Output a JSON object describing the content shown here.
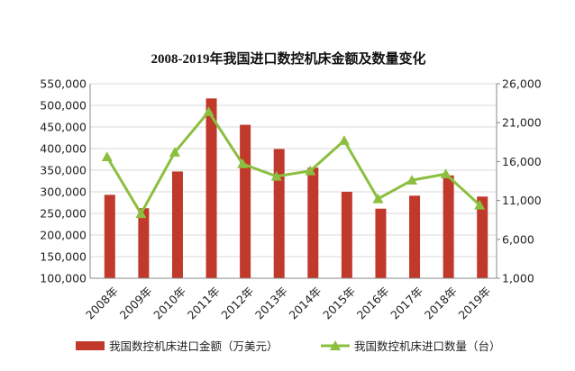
{
  "chart_data": {
    "type": "bar+line",
    "title": "2008-2019年我国进口数控机床金额及数量变化",
    "categories": [
      "2008年",
      "2009年",
      "2010年",
      "2011年",
      "2012年",
      "2013年",
      "2014年",
      "2015年",
      "2016年",
      "2017年",
      "2018年",
      "2019年"
    ],
    "y_left": {
      "ylim": [
        100000,
        550000
      ],
      "ticks": [
        "100,000",
        "150,000",
        "200,000",
        "250,000",
        "300,000",
        "350,000",
        "400,000",
        "450,000",
        "500,000",
        "550,000"
      ]
    },
    "y_right": {
      "ylim": [
        1000,
        26000
      ],
      "ticks": [
        "1,000",
        "6,000",
        "11,000",
        "16,000",
        "21,000",
        "26,000"
      ]
    },
    "series": [
      {
        "name": "我国数控机床进口金额（万美元）",
        "type": "bar",
        "axis": "left",
        "color": "#c0392b",
        "values": [
          293000,
          262000,
          347000,
          516000,
          455000,
          399000,
          356000,
          300000,
          261000,
          291000,
          338000,
          289000
        ]
      },
      {
        "name": "我国数控机床进口数量（台）",
        "type": "line",
        "axis": "right",
        "color": "#8cbf3f",
        "values": [
          16600,
          9300,
          17200,
          22400,
          15700,
          14100,
          14800,
          18700,
          11200,
          13600,
          14400,
          10400
        ]
      }
    ],
    "grid": true,
    "legend": "bottom"
  }
}
